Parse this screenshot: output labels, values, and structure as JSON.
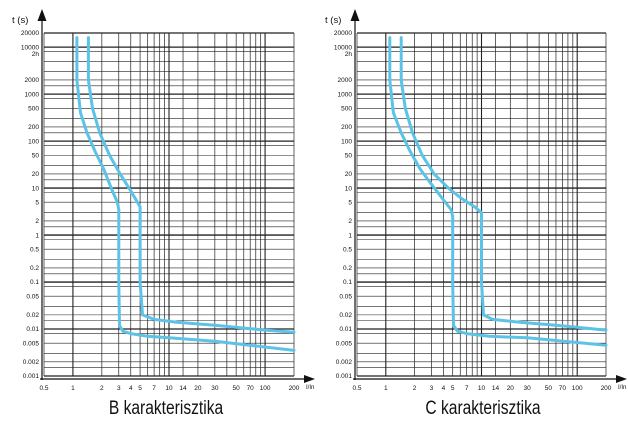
{
  "chart_data": [
    {
      "type": "line",
      "title": "B karakterisztika",
      "ylabel": "t (s)",
      "xlabel": "I/In",
      "x_scale": "log",
      "y_scale": "log",
      "xlim": [
        0.5,
        200
      ],
      "ylim": [
        0.001,
        20000
      ],
      "x_ticks": [
        "0.5",
        "1",
        "2",
        "3",
        "4",
        "5",
        "7",
        "10",
        "14",
        "20",
        "30",
        "50",
        "70",
        "100",
        "200"
      ],
      "y_ticks": [
        "0.001",
        "0.002",
        "0.005",
        "0.01",
        "0.02",
        "0.05",
        "0.1",
        "0.2",
        "0.5",
        "1",
        "2",
        "5",
        "10",
        "20",
        "50",
        "100",
        "200",
        "500",
        "1000",
        "2000",
        "2h",
        "10000",
        "20000"
      ],
      "grid": true,
      "line_color": "#5bc3e6",
      "series": [
        {
          "x": [
            1.1,
            1.1,
            1.2,
            1.4,
            1.7,
            2.1,
            2.5,
            2.9,
            3.0,
            3.0,
            3.0,
            3.05,
            3.3,
            4.0,
            6.0,
            10.0,
            30.0,
            200.0
          ],
          "y": [
            16000,
            2000,
            400,
            150,
            60,
            25,
            10,
            5,
            3.5,
            2.5,
            0.1,
            0.012,
            0.009,
            0.008,
            0.007,
            0.0065,
            0.0055,
            0.0035
          ]
        },
        {
          "x": [
            1.45,
            1.45,
            1.6,
            1.9,
            2.4,
            3.1,
            4.1,
            5.0,
            5.0,
            5.0,
            5.3,
            7.0,
            12.0,
            30.0,
            100.0,
            200.0
          ],
          "y": [
            16000,
            2000,
            500,
            150,
            50,
            20,
            8,
            4,
            2.5,
            0.1,
            0.02,
            0.016,
            0.014,
            0.012,
            0.0095,
            0.0085
          ]
        }
      ]
    },
    {
      "type": "line",
      "title": "C karakterisztika",
      "ylabel": "t (s)",
      "xlabel": "I/In",
      "x_scale": "log",
      "y_scale": "log",
      "xlim": [
        0.5,
        200
      ],
      "ylim": [
        0.001,
        20000
      ],
      "x_ticks": [
        "0.5",
        "1",
        "2",
        "3",
        "4",
        "5",
        "7",
        "10",
        "14",
        "20",
        "30",
        "50",
        "70",
        "100",
        "200"
      ],
      "y_ticks": [
        "0.001",
        "0.002",
        "0.005",
        "0.01",
        "0.02",
        "0.05",
        "0.1",
        "0.2",
        "0.5",
        "1",
        "2",
        "5",
        "10",
        "20",
        "50",
        "100",
        "200",
        "500",
        "1000",
        "2000",
        "2h",
        "10000",
        "20000"
      ],
      "grid": true,
      "line_color": "#5bc3e6",
      "series": [
        {
          "x": [
            1.1,
            1.1,
            1.2,
            1.45,
            1.8,
            2.3,
            3.0,
            3.9,
            4.8,
            5.0,
            5.0,
            5.1,
            5.6,
            7.0,
            12.0,
            30.0,
            200.0
          ],
          "y": [
            16000,
            2000,
            400,
            150,
            60,
            25,
            12,
            6,
            3.5,
            2.5,
            0.1,
            0.012,
            0.009,
            0.008,
            0.007,
            0.0065,
            0.0045
          ]
        },
        {
          "x": [
            1.45,
            1.45,
            1.6,
            1.9,
            2.4,
            3.2,
            4.5,
            6.2,
            8.5,
            10.0,
            10.0,
            10.0,
            10.5,
            13.0,
            25.0,
            60.0,
            200.0
          ],
          "y": [
            16000,
            2000,
            500,
            150,
            50,
            20,
            10,
            6,
            4,
            3,
            2.5,
            0.1,
            0.02,
            0.016,
            0.014,
            0.012,
            0.0095
          ]
        }
      ]
    }
  ]
}
